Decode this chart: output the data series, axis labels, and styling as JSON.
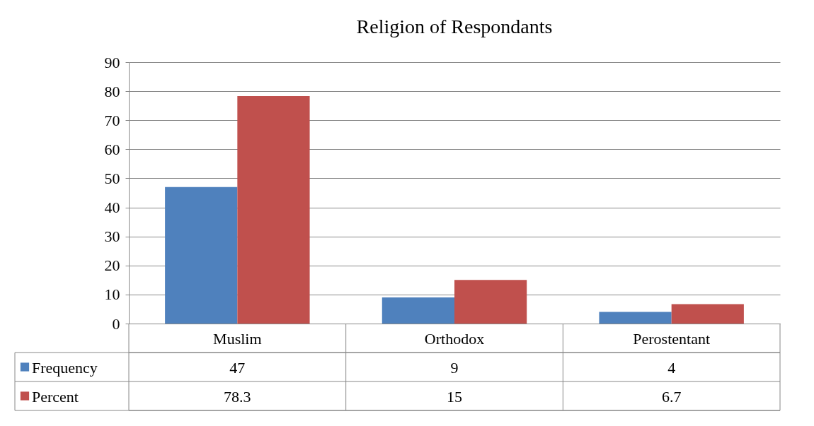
{
  "chart_data": {
    "type": "bar",
    "title": "Religion of Respondants",
    "categories": [
      "Muslim",
      "Orthodox",
      "Perostentant"
    ],
    "series": [
      {
        "name": "Frequency",
        "color": "#4f81bd",
        "values": [
          47,
          9,
          4
        ]
      },
      {
        "name": "Percent",
        "color": "#c0504d",
        "values": [
          78.3,
          15,
          6.7
        ]
      }
    ],
    "ylim": [
      0,
      90
    ],
    "yticks": [
      0,
      10,
      20,
      30,
      40,
      50,
      60,
      70,
      80,
      90
    ],
    "grid": "y",
    "legend": "bottom",
    "data_labels": true
  }
}
